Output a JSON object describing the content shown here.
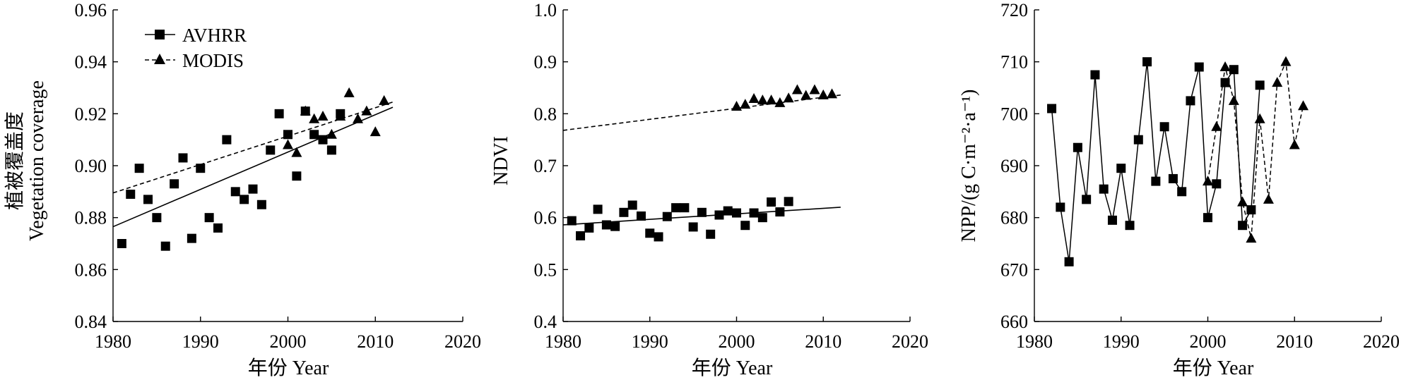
{
  "legend": {
    "avhrr": "AVHRR",
    "modis": "MODIS"
  },
  "chart_data": [
    {
      "type": "scatter",
      "xlabel": "年份 Year",
      "ylabel_cn": "植被覆盖度",
      "ylabel_en": "Vegetation coverage",
      "xlim": [
        1980,
        2020
      ],
      "ylim": [
        0.84,
        0.96
      ],
      "xticks": [
        "1980",
        "1990",
        "2000",
        "2010",
        "2020"
      ],
      "yticks": [
        "0.84",
        "0.86",
        "0.88",
        "0.90",
        "0.92",
        "0.94",
        "0.96"
      ],
      "series": [
        {
          "name": "AVHRR",
          "marker": "square",
          "x": [
            1981,
            1982,
            1983,
            1984,
            1985,
            1986,
            1987,
            1988,
            1989,
            1990,
            1991,
            1992,
            1993,
            1994,
            1995,
            1996,
            1997,
            1998,
            1999,
            2000,
            2001,
            2002,
            2003,
            2004,
            2005,
            2006
          ],
          "y": [
            0.87,
            0.889,
            0.899,
            0.887,
            0.88,
            0.869,
            0.893,
            0.903,
            0.872,
            0.899,
            0.88,
            0.876,
            0.91,
            0.89,
            0.887,
            0.891,
            0.885,
            0.906,
            0.92,
            0.912,
            0.896,
            0.921,
            0.912,
            0.91,
            0.906,
            0.92
          ],
          "trend": {
            "x": [
              1980,
              2012
            ],
            "y": [
              0.8765,
              0.9225
            ],
            "dash": "solid"
          }
        },
        {
          "name": "MODIS",
          "marker": "triangle",
          "x": [
            2000,
            2001,
            2002,
            2003,
            2004,
            2005,
            2006,
            2007,
            2008,
            2009,
            2010,
            2011
          ],
          "y": [
            0.908,
            0.905,
            0.921,
            0.918,
            0.919,
            0.912,
            0.919,
            0.928,
            0.918,
            0.921,
            0.913,
            0.925
          ],
          "trend": {
            "x": [
              1980,
              2012
            ],
            "y": [
              0.8895,
              0.9245
            ],
            "dash": "dashed"
          }
        }
      ]
    },
    {
      "type": "scatter",
      "xlabel": "年份 Year",
      "ylabel": "NDVI",
      "xlim": [
        1980,
        2020
      ],
      "ylim": [
        0.4,
        1.0
      ],
      "xticks": [
        "1980",
        "1990",
        "2000",
        "2010",
        "2020"
      ],
      "yticks": [
        "0.4",
        "0.5",
        "0.6",
        "0.7",
        "0.8",
        "0.9",
        "1.0"
      ],
      "series": [
        {
          "name": "AVHRR",
          "marker": "square",
          "x": [
            1981,
            1982,
            1983,
            1984,
            1985,
            1986,
            1987,
            1988,
            1989,
            1990,
            1991,
            1992,
            1993,
            1994,
            1995,
            1996,
            1997,
            1998,
            1999,
            2000,
            2001,
            2002,
            2003,
            2004,
            2005,
            2006
          ],
          "y": [
            0.594,
            0.565,
            0.58,
            0.616,
            0.586,
            0.583,
            0.61,
            0.624,
            0.603,
            0.57,
            0.563,
            0.602,
            0.619,
            0.619,
            0.582,
            0.61,
            0.568,
            0.605,
            0.613,
            0.609,
            0.585,
            0.609,
            0.6,
            0.63,
            0.611,
            0.631
          ],
          "trend": {
            "x": [
              1980,
              2012
            ],
            "y": [
              0.586,
              0.62
            ],
            "dash": "solid"
          }
        },
        {
          "name": "MODIS",
          "marker": "triangle",
          "x": [
            2000,
            2001,
            2002,
            2003,
            2004,
            2005,
            2006,
            2007,
            2008,
            2009,
            2010,
            2011
          ],
          "y": [
            0.814,
            0.818,
            0.829,
            0.826,
            0.826,
            0.821,
            0.83,
            0.846,
            0.835,
            0.846,
            0.836,
            0.838
          ],
          "trend": {
            "x": [
              1980,
              2012
            ],
            "y": [
              0.768,
              0.836
            ],
            "dash": "dashed"
          }
        }
      ]
    },
    {
      "type": "line",
      "xlabel": "年份 Year",
      "ylabel": "NPP/(g C·m⁻²·a⁻¹)",
      "xlim": [
        1980,
        2020
      ],
      "ylim": [
        660,
        720
      ],
      "xticks": [
        "1980",
        "1990",
        "2000",
        "2010",
        "2020"
      ],
      "yticks": [
        "660",
        "670",
        "680",
        "690",
        "700",
        "710",
        "720"
      ],
      "series": [
        {
          "name": "AVHRR",
          "marker": "square",
          "x": [
            1982,
            1983,
            1984,
            1985,
            1986,
            1987,
            1988,
            1989,
            1990,
            1991,
            1992,
            1993,
            1994,
            1995,
            1996,
            1997,
            1998,
            1999,
            2000,
            2001,
            2002,
            2003,
            2004,
            2005,
            2006
          ],
          "y": [
            701,
            682,
            671.5,
            693.5,
            683.5,
            707.5,
            685.5,
            679.5,
            689.5,
            678.5,
            695,
            710,
            687,
            697.5,
            687.5,
            685,
            702.5,
            709,
            680,
            686.5,
            706,
            708.5,
            678.5,
            681.5,
            705.5
          ],
          "dash": "solid"
        },
        {
          "name": "MODIS",
          "marker": "triangle",
          "x": [
            2000,
            2001,
            2002,
            2003,
            2004,
            2005,
            2006,
            2007,
            2008,
            2009,
            2010,
            2011
          ],
          "y": [
            687,
            697.5,
            709,
            702.5,
            683,
            676,
            699,
            683.5,
            706,
            710,
            694,
            701.5
          ],
          "dash": "dashed"
        }
      ]
    }
  ]
}
